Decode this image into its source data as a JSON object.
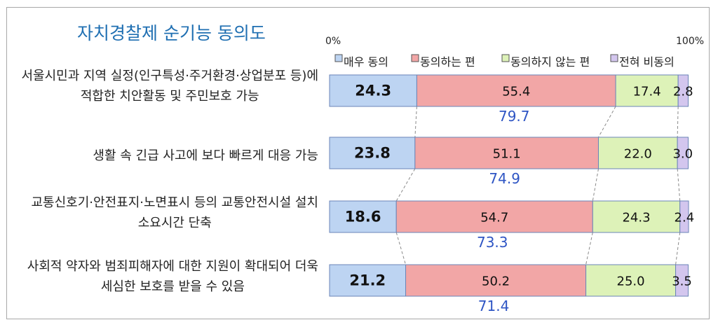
{
  "chart_data": {
    "type": "bar",
    "orientation": "horizontal",
    "stacked": true,
    "title": "자치경찰제 순기능 동의도",
    "xlim": [
      0,
      100
    ],
    "xtick_labels": [
      "0%",
      "100%"
    ],
    "categories": [
      [
        "서울시민과 지역 실정(인구특성·주거환경·상업분포 등)에",
        "적합한 치안활동 및 주민보호 가능"
      ],
      [
        "생활 속 긴급 사고에 보다 빠르게 대응 가능"
      ],
      [
        "교통신호기·안전표지·노면표시 등의 교통안전시설 설치",
        "소요시간 단축"
      ],
      [
        "사회적 약자와 범죄피해자에 대한 지원이 확대되어 더욱",
        "세심한 보호를 받을 수 있음"
      ]
    ],
    "series": [
      {
        "name": "매우 동의",
        "color": "#bdd4f2",
        "values": [
          24.3,
          23.8,
          18.6,
          21.2
        ]
      },
      {
        "name": "동의하는 편",
        "color": "#f2a6a6",
        "values": [
          55.4,
          51.1,
          54.7,
          50.2
        ]
      },
      {
        "name": "동의하지 않는 편",
        "color": "#ddf2b8",
        "values": [
          17.4,
          22.0,
          24.3,
          25.0
        ]
      },
      {
        "name": "전혀 비동의",
        "color": "#d3c6ee",
        "values": [
          2.8,
          3.0,
          2.4,
          3.5
        ]
      }
    ],
    "series_labels": [
      [
        "24.3",
        "23.8",
        "18.6",
        "21.2"
      ],
      [
        "55.4",
        "51.1",
        "54.7",
        "50.2"
      ],
      [
        "17.4",
        "22.0",
        "24.3",
        "25.0"
      ],
      [
        "2.8",
        "3.0",
        "2.4",
        "3.5"
      ]
    ],
    "agree_totals": [
      79.7,
      74.9,
      73.3,
      71.4
    ],
    "agree_total_labels": [
      "79.7",
      "74.9",
      "73.3",
      "71.4"
    ],
    "legend_position": "top",
    "grid": false
  },
  "colors": {
    "title": "#1f6fb2",
    "total": "#2e55c4",
    "connector": "#8a8a8a",
    "bar_border": "#6b85b8"
  }
}
